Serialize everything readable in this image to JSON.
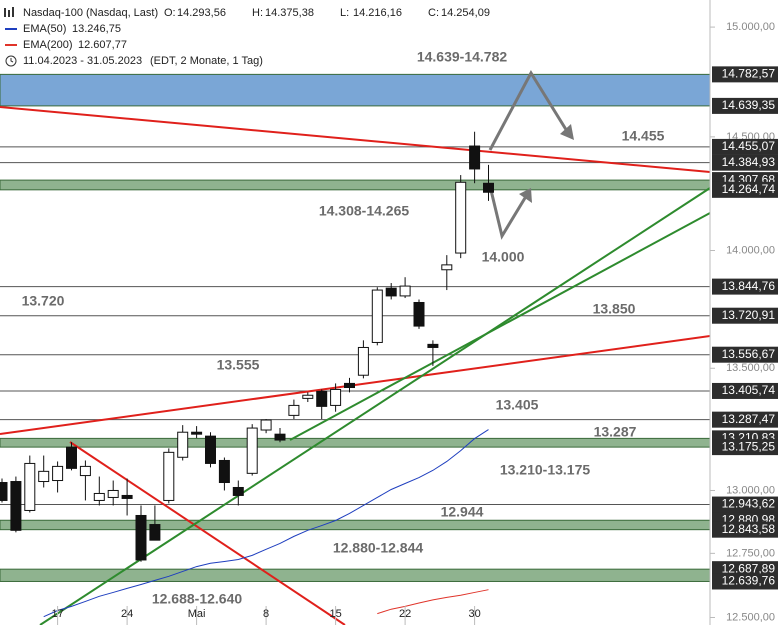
{
  "chart_data": {
    "type": "candlestick",
    "title": "Nasdaq-100 (Nasdaq, Last)",
    "ohlc_header": [
      {
        "name": "O:",
        "value": 14293.56,
        "label": "14.293,56"
      },
      {
        "name": "H:",
        "value": 14375.38,
        "label": "14.375,38"
      },
      {
        "name": "L:",
        "value": 14216.16,
        "label": "14.216,16"
      },
      {
        "name": "C:",
        "value": 14254.09,
        "label": "14.254,09"
      }
    ],
    "date_range": "11.04.2023 - 31.05.2023",
    "period": "(EDT, 2 Monate, 1 Tag)",
    "categories": [
      null,
      null,
      null,
      null,
      "17",
      null,
      null,
      null,
      null,
      "24",
      null,
      null,
      null,
      null,
      "Mai",
      null,
      null,
      null,
      null,
      "8",
      null,
      null,
      null,
      null,
      "15",
      null,
      null,
      null,
      null,
      "22",
      null,
      null,
      null,
      null,
      "30",
      null
    ],
    "open": [
      13032,
      13036,
      12920,
      13036,
      13040,
      13175,
      13060,
      12960,
      12972,
      12980,
      12900,
      12864,
      12960,
      13134,
      13236,
      13220,
      13121,
      13012,
      13069,
      13245,
      13228,
      13305,
      13375,
      13404,
      13346,
      13437,
      13471,
      13608,
      13838,
      13805,
      13777,
      13600,
      13917,
      13989,
      14459,
      14293.56
    ],
    "high": [
      13048,
      13056,
      13141,
      13141,
      13117,
      13195,
      13121,
      13056,
      13040,
      13048,
      12940,
      12940,
      13170,
      13265,
      13261,
      13236,
      13133,
      13040,
      13269,
      13290,
      13253,
      13370,
      13400,
      13412,
      13437,
      13460,
      13617,
      13842,
      13860,
      13885,
      13790,
      13617,
      13980,
      14330,
      14523,
      14375.38
    ],
    "low": [
      12952,
      12833,
      12912,
      13012,
      12992,
      13081,
      12960,
      12940,
      12940,
      12900,
      12717,
      12802,
      12948,
      13121,
      13212,
      13093,
      13000,
      12940,
      13060,
      13232,
      13195,
      13290,
      13360,
      13290,
      13320,
      13400,
      13458,
      13596,
      13790,
      13796,
      13665,
      13510,
      13830,
      13967,
      14294,
      14216.16
    ],
    "close": [
      12960,
      12841,
      13109,
      13077,
      13097,
      13089,
      13097,
      12988,
      13000,
      12968,
      12724,
      12802,
      13154,
      13236,
      13228,
      13109,
      13032,
      12980,
      13253,
      13286,
      13204,
      13346,
      13388,
      13342,
      13412,
      13420,
      13587,
      13830,
      13805,
      13847,
      13677,
      13587,
      13938,
      14298,
      14357,
      14254.09
    ],
    "up_color": "#ffffff",
    "down_color": "#111111",
    "series": [
      {
        "name": "EMA(50)",
        "color": "#1f3fbf",
        "legend_label": "13.246,75",
        "values": [
          null,
          null,
          null,
          12503,
          12527,
          12543,
          12562,
          12582,
          12597,
          12613,
          12628,
          12644,
          12660,
          12679,
          12698,
          12711,
          12718,
          12726,
          12742,
          12766,
          12789,
          12817,
          12841,
          12860,
          12880,
          12908,
          12940,
          12972,
          13004,
          13028,
          13052,
          13081,
          13117,
          13161,
          13210,
          13246.75
        ]
      },
      {
        "name": "EMA(200)",
        "color": "#e0342a",
        "legend_label": "12.607,77",
        "values": [
          null,
          null,
          null,
          null,
          null,
          null,
          null,
          null,
          null,
          null,
          null,
          null,
          null,
          null,
          null,
          null,
          null,
          null,
          null,
          null,
          null,
          null,
          null,
          null,
          null,
          null,
          null,
          12515,
          12532,
          12543,
          12556,
          12568,
          12578,
          12586,
          12597,
          12607.77
        ]
      }
    ],
    "log_scale": true,
    "ylim": [
      12471,
      15126
    ],
    "yticks": [
      {
        "value": 15000,
        "label": "15.000,00"
      },
      {
        "value": 14500,
        "label": "14.500,00"
      },
      {
        "value": 14000,
        "label": "14.000,00"
      },
      {
        "value": 13500,
        "label": "13.500,00"
      },
      {
        "value": 13000,
        "label": "13.000,00"
      },
      {
        "value": 12750,
        "label": "12.750,00"
      },
      {
        "value": 12500,
        "label": "12.500,00"
      }
    ],
    "levels": [
      {
        "value": 14455.07,
        "label": "14.455,07"
      },
      {
        "value": 14384.93,
        "label": "14.384,93"
      },
      {
        "value": 13844.76,
        "label": "13.844,76"
      },
      {
        "value": 13720.91,
        "label": "13.720,91"
      },
      {
        "value": 13556.67,
        "label": "13.556,67"
      },
      {
        "value": 13405.74,
        "label": "13.405,74"
      },
      {
        "value": 13287.47,
        "label": "13.287,47"
      },
      {
        "value": 12943.62,
        "label": "12.943,62"
      }
    ],
    "zones": [
      {
        "color": "#7aa6d6",
        "top": {
          "value": 14782.57,
          "label": "14.782,57"
        },
        "bottom": {
          "value": 14639.35,
          "label": "14.639,35"
        }
      },
      {
        "color": "#8fb38f",
        "top": {
          "value": 14307.68,
          "label": "14.307,68"
        },
        "bottom": {
          "value": 14264.74,
          "label": "14.264,74"
        }
      },
      {
        "color": "#8fb38f",
        "top": {
          "value": 13210.83,
          "label": "13.210,83"
        },
        "bottom": {
          "value": 13175.25,
          "label": "13.175,25"
        }
      },
      {
        "color": "#8fb38f",
        "top": {
          "value": 12880.98,
          "label": "12.880,98"
        },
        "bottom": {
          "value": 12843.58,
          "label": "12.843,58"
        }
      },
      {
        "color": "#8fb38f",
        "top": {
          "value": 12687.89,
          "label": "12.687,89"
        },
        "bottom": {
          "value": 12639.76,
          "label": "12.639,76"
        }
      }
    ],
    "annotations": [
      "14.639-14.782",
      "14.455",
      "14.308-14.265",
      "14.000",
      "13.720",
      "13.850",
      "13.555",
      "13.405",
      "13.287",
      "13.210-13.175",
      "12.944",
      "12.880-12.844",
      "12.688-12.640"
    ]
  }
}
